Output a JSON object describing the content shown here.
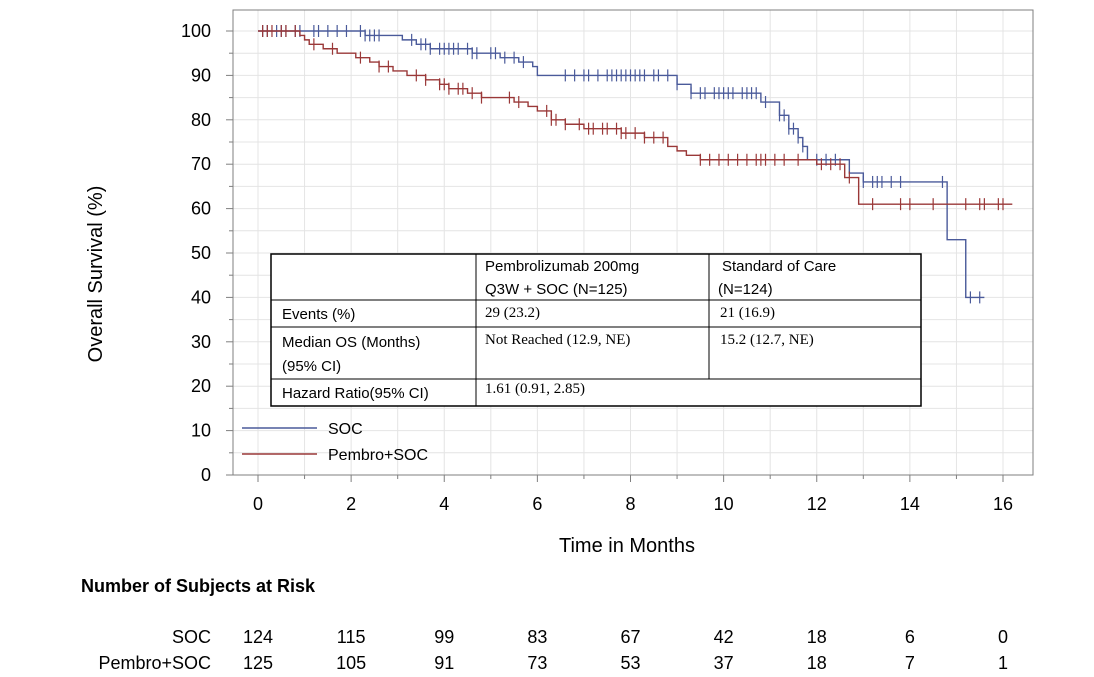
{
  "chart_data": {
    "type": "line",
    "xlabel": "Time in Months",
    "ylabel": "Overall Survival (%)",
    "xlim": [
      0,
      16.5
    ],
    "ylim": [
      0,
      105
    ],
    "x_ticks": [
      0,
      2,
      4,
      6,
      8,
      10,
      12,
      14,
      16
    ],
    "y_ticks": [
      0,
      10,
      20,
      30,
      40,
      50,
      60,
      70,
      80,
      90,
      100
    ],
    "grid": true,
    "legend_position": "bottom-left",
    "series": [
      {
        "name": "SOC",
        "color": "#4a5a9a",
        "steps": [
          [
            0,
            100
          ],
          [
            2.3,
            99
          ],
          [
            3.1,
            98
          ],
          [
            3.4,
            97
          ],
          [
            3.7,
            96
          ],
          [
            4.6,
            95
          ],
          [
            5.2,
            94
          ],
          [
            5.6,
            93
          ],
          [
            5.9,
            92
          ],
          [
            6.0,
            90
          ],
          [
            9.0,
            88
          ],
          [
            9.3,
            86
          ],
          [
            10.8,
            84
          ],
          [
            11.2,
            81
          ],
          [
            11.4,
            78
          ],
          [
            11.6,
            76
          ],
          [
            11.7,
            74
          ],
          [
            11.8,
            71
          ],
          [
            12.7,
            68
          ],
          [
            13.0,
            66
          ],
          [
            14.8,
            53
          ],
          [
            15.2,
            40
          ],
          [
            15.6,
            40
          ]
        ],
        "censor_x": [
          0.1,
          0.2,
          0.4,
          0.5,
          0.6,
          0.8,
          0.9,
          1.2,
          1.3,
          1.5,
          1.7,
          1.9,
          2.2,
          2.3,
          2.4,
          2.5,
          2.6,
          3.3,
          3.5,
          3.6,
          3.7,
          3.9,
          4.0,
          4.1,
          4.2,
          4.3,
          4.5,
          4.6,
          4.7,
          5.0,
          5.1,
          5.3,
          5.5,
          5.7,
          6.6,
          6.8,
          7.0,
          7.1,
          7.3,
          7.5,
          7.6,
          7.7,
          7.8,
          7.9,
          8.0,
          8.1,
          8.2,
          8.3,
          8.5,
          8.6,
          8.8,
          9.0,
          9.3,
          9.5,
          9.6,
          9.8,
          9.9,
          10.0,
          10.1,
          10.2,
          10.4,
          10.5,
          10.6,
          10.7,
          10.9,
          11.2,
          11.3,
          11.4,
          11.5,
          11.6,
          11.7,
          12.0,
          12.2,
          12.4,
          13.0,
          13.2,
          13.3,
          13.4,
          13.6,
          13.8,
          14.7,
          15.3,
          15.5
        ],
        "at_risk": [
          124,
          115,
          99,
          83,
          67,
          42,
          18,
          6,
          0
        ]
      },
      {
        "name": "Pembro+SOC",
        "color": "#9a3838",
        "steps": [
          [
            0,
            100
          ],
          [
            0.9,
            99
          ],
          [
            1.0,
            98
          ],
          [
            1.1,
            97
          ],
          [
            1.4,
            96
          ],
          [
            1.7,
            95
          ],
          [
            2.1,
            94
          ],
          [
            2.4,
            93
          ],
          [
            2.6,
            92
          ],
          [
            2.9,
            91
          ],
          [
            3.2,
            90
          ],
          [
            3.6,
            89
          ],
          [
            3.9,
            88
          ],
          [
            4.1,
            87
          ],
          [
            4.5,
            86
          ],
          [
            4.8,
            85
          ],
          [
            5.5,
            84
          ],
          [
            5.8,
            83
          ],
          [
            6.0,
            82
          ],
          [
            6.3,
            80
          ],
          [
            6.6,
            79
          ],
          [
            7.0,
            78
          ],
          [
            7.8,
            77
          ],
          [
            8.3,
            76
          ],
          [
            8.8,
            74
          ],
          [
            9.0,
            73
          ],
          [
            9.2,
            72
          ],
          [
            9.5,
            71
          ],
          [
            12.0,
            70
          ],
          [
            12.6,
            67
          ],
          [
            12.9,
            65
          ],
          [
            12.9,
            61
          ],
          [
            16.2,
            61
          ]
        ],
        "censor_x": [
          0.1,
          0.2,
          0.3,
          0.5,
          0.6,
          0.8,
          1.2,
          1.6,
          2.2,
          2.6,
          2.8,
          3.4,
          3.6,
          3.9,
          4.0,
          4.1,
          4.3,
          4.4,
          4.6,
          4.8,
          5.4,
          5.6,
          6.2,
          6.3,
          6.4,
          6.6,
          6.9,
          7.1,
          7.2,
          7.4,
          7.5,
          7.7,
          7.8,
          7.9,
          8.1,
          8.3,
          8.5,
          8.7,
          9.5,
          9.7,
          9.9,
          10.1,
          10.3,
          10.5,
          10.7,
          10.8,
          10.9,
          11.1,
          11.3,
          11.6,
          12.1,
          12.3,
          12.5,
          12.7,
          13.2,
          13.8,
          14.0,
          14.5,
          15.2,
          15.5,
          15.6,
          15.9,
          16.0
        ],
        "at_risk": [
          125,
          105,
          91,
          73,
          53,
          37,
          18,
          7,
          1
        ]
      }
    ]
  },
  "summary_table": {
    "col1_line1": "Pembrolizumab 200mg",
    "col1_line2": "Q3W + SOC  (N=125)",
    "col2_line1": "Standard of Care",
    "col2_line2": "(N=124)",
    "events_label": "Events (%)",
    "events_pembro": "29 (23.2)",
    "events_soc": "21 (16.9)",
    "median_label_1": "Median OS  (Months)",
    "median_label_2": "(95% CI)",
    "median_pembro": "Not Reached (12.9, NE)",
    "median_soc": "15.2 (12.7, NE)",
    "hr_label": "Hazard Ratio(95% CI)",
    "hr_value": "1.61 (0.91, 2.85)"
  },
  "risk_table": {
    "title": "Number of Subjects at Risk",
    "soc_label": "SOC",
    "pembro_label": "Pembro+SOC"
  }
}
